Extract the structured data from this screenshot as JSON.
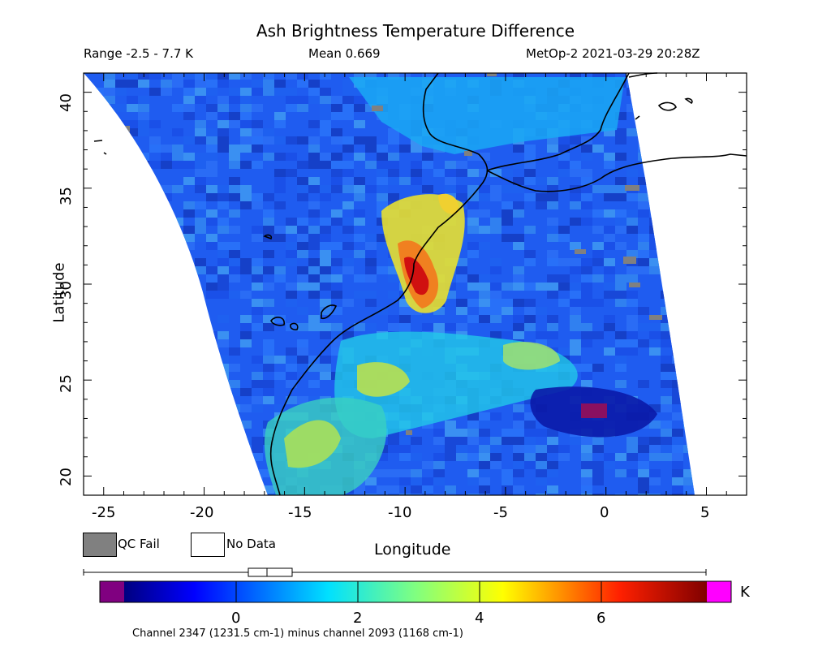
{
  "header": {
    "title": "Ash Brightness Temperature Difference",
    "range": "Range -2.5 - 7.7 K",
    "mean": "Mean 0.669",
    "satellite_time": "MetOp-2 2021-03-29 20:28Z"
  },
  "axes": {
    "xlabel": "Longitude",
    "ylabel": "Latitude",
    "x_ticks": [
      "-25",
      "-20",
      "-15",
      "-10",
      "-5",
      "0",
      "5"
    ],
    "y_ticks": [
      "40",
      "35",
      "30",
      "25",
      "20"
    ]
  },
  "legend": {
    "qc_fail": "QC Fail",
    "no_data": "No Data",
    "qc_color": "#808080"
  },
  "colorbar": {
    "unit": "K",
    "labels": [
      "0",
      "2",
      "4",
      "6"
    ],
    "under_color": "#800080",
    "over_color": "#ff00ff",
    "caption": "Channel 2347 (1231.5 cm-1) minus channel 2093 (1168 cm-1)"
  },
  "chart_data": {
    "type": "heatmap",
    "title": "Ash Brightness Temperature Difference",
    "xlabel": "Longitude",
    "ylabel": "Latitude",
    "xlim": [
      -26,
      7
    ],
    "ylim": [
      19,
      41
    ],
    "value_range": [
      -2.5,
      7.7
    ],
    "mean": 0.669,
    "colorbar_ticks": [
      0,
      2,
      4,
      6
    ],
    "hotspots": [
      {
        "lon": -10,
        "lat": 30.5,
        "value": 7.0
      },
      {
        "lon": -0.5,
        "lat": 23.3,
        "value": 7.7
      },
      {
        "lon": -13.5,
        "lat": 22,
        "value": 3.5
      },
      {
        "lon": -11,
        "lat": 25.5,
        "value": 3.2
      }
    ]
  }
}
